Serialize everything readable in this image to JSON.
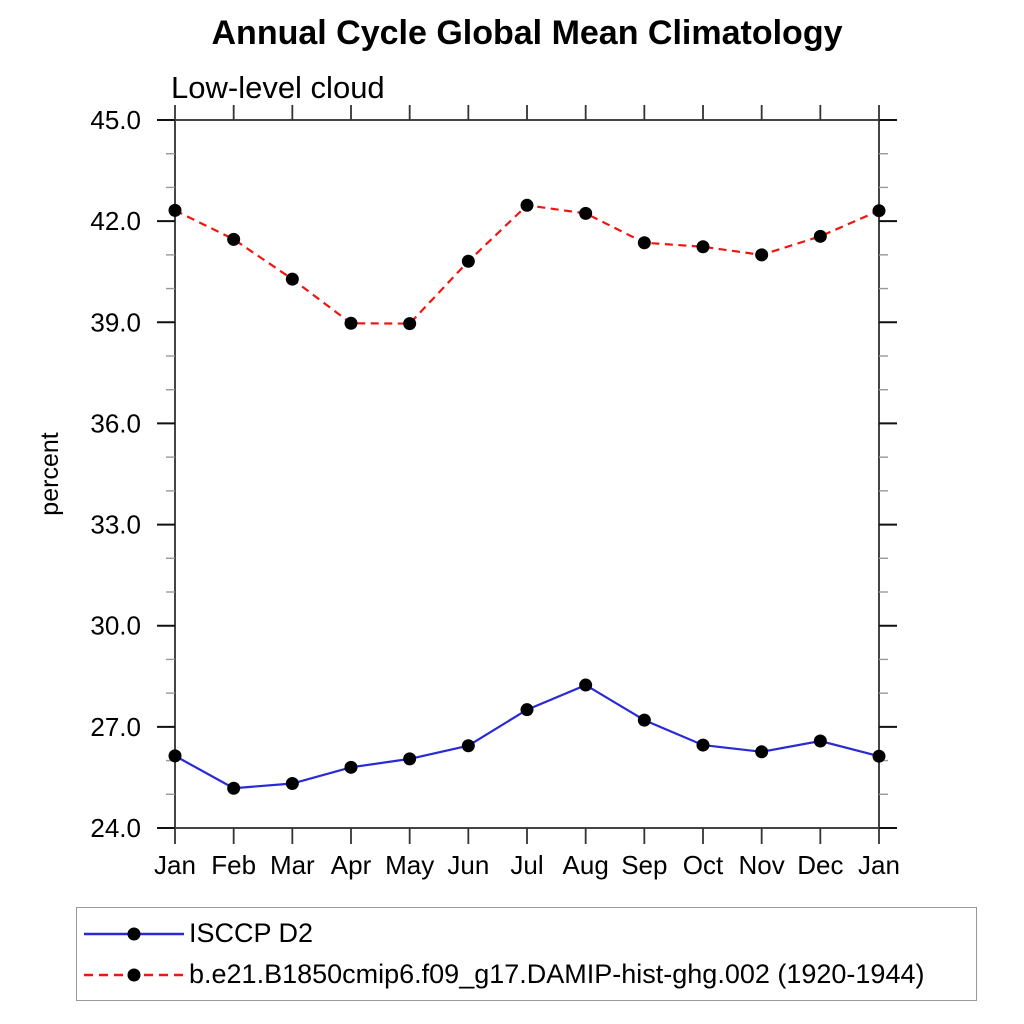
{
  "chart_data": {
    "type": "line",
    "title": "Annual Cycle Global Mean Climatology",
    "subtitle": "Low-level cloud",
    "xlabel": "",
    "ylabel": "percent",
    "categories": [
      "Jan",
      "Feb",
      "Mar",
      "Apr",
      "May",
      "Jun",
      "Jul",
      "Aug",
      "Sep",
      "Oct",
      "Nov",
      "Dec",
      "Jan"
    ],
    "series": [
      {
        "name": "ISCCP D2",
        "color": "#2929d6",
        "line_style": "solid",
        "marker": "filled-circle",
        "marker_color": "#000000",
        "values": [
          26.14,
          25.18,
          25.32,
          25.8,
          26.05,
          26.44,
          27.51,
          28.24,
          27.2,
          26.46,
          26.26,
          26.58,
          26.13
        ]
      },
      {
        "name": "b.e21.B1850cmip6.f09_g17.DAMIP-hist-ghg.002 (1920-1944)",
        "color": "#f01511",
        "line_style": "dashed",
        "marker": "filled-circle",
        "marker_color": "#000000",
        "values": [
          42.32,
          41.46,
          40.28,
          38.97,
          38.96,
          40.81,
          42.47,
          42.23,
          41.36,
          41.24,
          41.0,
          41.55,
          42.31
        ]
      }
    ],
    "ylim": [
      24.0,
      45.0
    ],
    "y_major_ticks": [
      24.0,
      27.0,
      30.0,
      33.0,
      36.0,
      39.0,
      42.0,
      45.0
    ],
    "y_tick_labels": [
      "24.0",
      "27.0",
      "30.0",
      "33.0",
      "36.0",
      "39.0",
      "42.0",
      "45.0"
    ],
    "y_minor_step": 1.0,
    "grid": false,
    "legend_position": "bottom-left",
    "frame_color": "#444444",
    "major_tick_color": "#111111",
    "minor_tick_color": "#999999"
  }
}
